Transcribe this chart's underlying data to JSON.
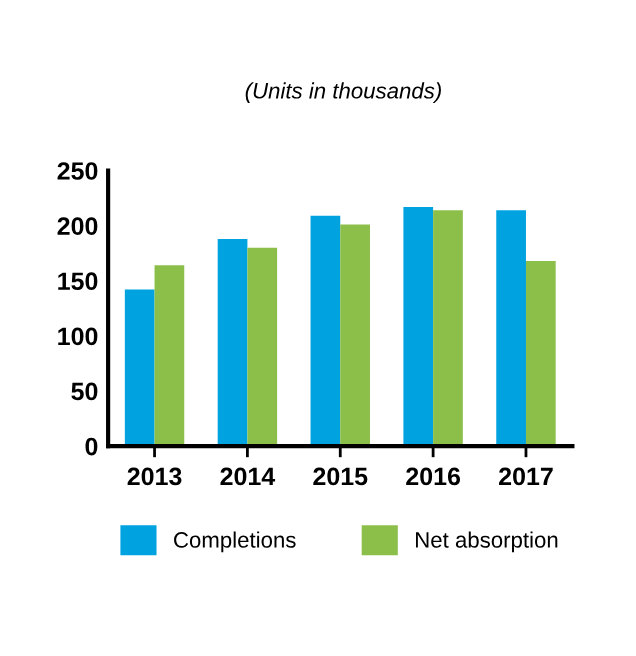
{
  "chart_data": {
    "type": "bar",
    "subtitle": "(Units in thousands)",
    "categories": [
      "2013",
      "2014",
      "2015",
      "2016",
      "2017"
    ],
    "series": [
      {
        "name": "Completions",
        "color": "#00a3e0",
        "values": [
          142,
          188,
          209,
          217,
          214
        ]
      },
      {
        "name": "Net absorption",
        "color": "#8cbf4a",
        "values": [
          164,
          180,
          201,
          214,
          168
        ]
      }
    ],
    "ylim": [
      0,
      250
    ],
    "yticks": [
      0,
      50,
      100,
      150,
      200,
      250
    ],
    "grid": false,
    "legend": "bottom"
  }
}
